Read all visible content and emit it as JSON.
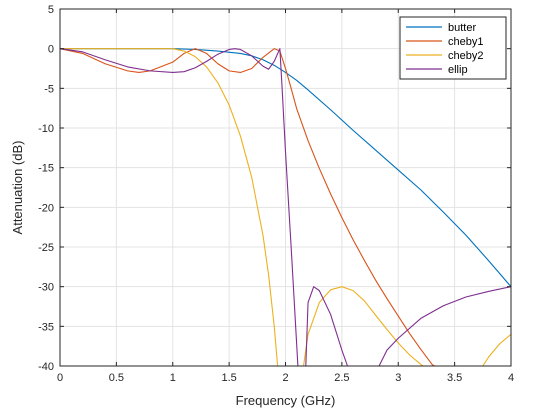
{
  "chart_data": {
    "type": "line",
    "xlabel": "Frequency (GHz)",
    "ylabel": "Attenuation (dB)",
    "xlim": [
      0,
      4
    ],
    "ylim": [
      -40,
      5
    ],
    "xticks": [
      0,
      0.5,
      1,
      1.5,
      2,
      2.5,
      3,
      3.5,
      4
    ],
    "xtick_labels": [
      "0",
      "0.5",
      "1",
      "1.5",
      "2",
      "2.5",
      "3",
      "3.5",
      "4"
    ],
    "yticks": [
      5,
      0,
      -5,
      -10,
      -15,
      -20,
      -25,
      -30,
      -35,
      -40
    ],
    "ytick_labels": [
      "5",
      "0",
      "-5",
      "-10",
      "-15",
      "-20",
      "-25",
      "-30",
      "-35",
      "-40"
    ],
    "grid": true,
    "legend_position": "top-right",
    "series": [
      {
        "name": "butter",
        "color": "#0072BD",
        "points": [
          [
            0,
            0
          ],
          [
            0.5,
            0
          ],
          [
            1.0,
            0
          ],
          [
            1.2,
            -0.1
          ],
          [
            1.4,
            -0.3
          ],
          [
            1.6,
            -0.6
          ],
          [
            1.7,
            -0.9
          ],
          [
            1.8,
            -1.4
          ],
          [
            1.9,
            -2.1
          ],
          [
            2.0,
            -3.0
          ],
          [
            2.1,
            -4.0
          ],
          [
            2.2,
            -5.2
          ],
          [
            2.4,
            -7.7
          ],
          [
            2.6,
            -10.3
          ],
          [
            2.8,
            -12.8
          ],
          [
            3.0,
            -15.3
          ],
          [
            3.2,
            -17.8
          ],
          [
            3.4,
            -20.6
          ],
          [
            3.6,
            -23.5
          ],
          [
            3.8,
            -26.7
          ],
          [
            4.0,
            -30.0
          ]
        ]
      },
      {
        "name": "cheby1",
        "color": "#D95319",
        "points": [
          [
            0,
            0
          ],
          [
            0.2,
            -0.6
          ],
          [
            0.4,
            -1.9
          ],
          [
            0.6,
            -2.8
          ],
          [
            0.7,
            -3.0
          ],
          [
            0.8,
            -2.8
          ],
          [
            1.0,
            -1.7
          ],
          [
            1.1,
            -0.6
          ],
          [
            1.2,
            0
          ],
          [
            1.3,
            -0.6
          ],
          [
            1.4,
            -1.9
          ],
          [
            1.5,
            -2.8
          ],
          [
            1.6,
            -3.0
          ],
          [
            1.7,
            -2.5
          ],
          [
            1.8,
            -1.1
          ],
          [
            1.9,
            0
          ],
          [
            1.95,
            -0.3
          ],
          [
            2.0,
            -2.5
          ],
          [
            2.05,
            -5.0
          ],
          [
            2.1,
            -7.6
          ],
          [
            2.2,
            -11.6
          ],
          [
            2.3,
            -15.1
          ],
          [
            2.4,
            -18.3
          ],
          [
            2.5,
            -21.3
          ],
          [
            2.6,
            -24.1
          ],
          [
            2.7,
            -26.7
          ],
          [
            2.8,
            -29.2
          ],
          [
            2.9,
            -31.5
          ],
          [
            3.0,
            -33.7
          ],
          [
            3.1,
            -35.9
          ],
          [
            3.2,
            -37.9
          ],
          [
            3.3,
            -39.8
          ],
          [
            3.32,
            -40
          ]
        ]
      },
      {
        "name": "cheby2",
        "color": "#EDB120",
        "points": [
          [
            0,
            0
          ],
          [
            0.5,
            0
          ],
          [
            1.0,
            0
          ],
          [
            1.1,
            -0.3
          ],
          [
            1.2,
            -1.0
          ],
          [
            1.3,
            -2.3
          ],
          [
            1.4,
            -4.3
          ],
          [
            1.5,
            -7.1
          ],
          [
            1.6,
            -11.0
          ],
          [
            1.7,
            -16.2
          ],
          [
            1.8,
            -23.5
          ],
          [
            1.85,
            -28.5
          ],
          [
            1.9,
            -35.0
          ],
          [
            1.93,
            -40
          ],
          [
            2.16,
            -40
          ],
          [
            2.2,
            -36.0
          ],
          [
            2.3,
            -32.0
          ],
          [
            2.4,
            -30.4
          ],
          [
            2.5,
            -30.0
          ],
          [
            2.6,
            -30.5
          ],
          [
            2.7,
            -31.8
          ],
          [
            2.8,
            -33.6
          ],
          [
            2.9,
            -35.4
          ],
          [
            3.0,
            -37.1
          ],
          [
            3.1,
            -38.6
          ],
          [
            3.2,
            -39.8
          ],
          [
            3.22,
            -40
          ],
          [
            3.75,
            -40
          ],
          [
            3.8,
            -38.9
          ],
          [
            3.9,
            -37.2
          ],
          [
            4.0,
            -36.0
          ]
        ]
      },
      {
        "name": "ellip",
        "color": "#7E2F8E",
        "points": [
          [
            0,
            0
          ],
          [
            0.2,
            -0.4
          ],
          [
            0.4,
            -1.4
          ],
          [
            0.6,
            -2.3
          ],
          [
            0.8,
            -2.8
          ],
          [
            1.0,
            -3.0
          ],
          [
            1.1,
            -2.9
          ],
          [
            1.2,
            -2.4
          ],
          [
            1.3,
            -1.6
          ],
          [
            1.4,
            -0.7
          ],
          [
            1.5,
            -0.1
          ],
          [
            1.55,
            0
          ],
          [
            1.6,
            -0.1
          ],
          [
            1.7,
            -0.9
          ],
          [
            1.8,
            -2.2
          ],
          [
            1.85,
            -2.6
          ],
          [
            1.9,
            -1.6
          ],
          [
            1.95,
            0
          ],
          [
            1.97,
            -5.0
          ],
          [
            2.0,
            -13.0
          ],
          [
            2.05,
            -25.0
          ],
          [
            2.09,
            -35.0
          ],
          [
            2.11,
            -40
          ],
          [
            2.18,
            -40
          ],
          [
            2.2,
            -32.0
          ],
          [
            2.25,
            -30.0
          ],
          [
            2.3,
            -30.5
          ],
          [
            2.4,
            -33.5
          ],
          [
            2.5,
            -38.0
          ],
          [
            2.55,
            -40
          ],
          [
            2.83,
            -40
          ],
          [
            2.9,
            -38.0
          ],
          [
            3.0,
            -36.5
          ],
          [
            3.2,
            -34.0
          ],
          [
            3.4,
            -32.4
          ],
          [
            3.6,
            -31.3
          ],
          [
            3.8,
            -30.6
          ],
          [
            4.0,
            -30.0
          ]
        ]
      }
    ]
  }
}
